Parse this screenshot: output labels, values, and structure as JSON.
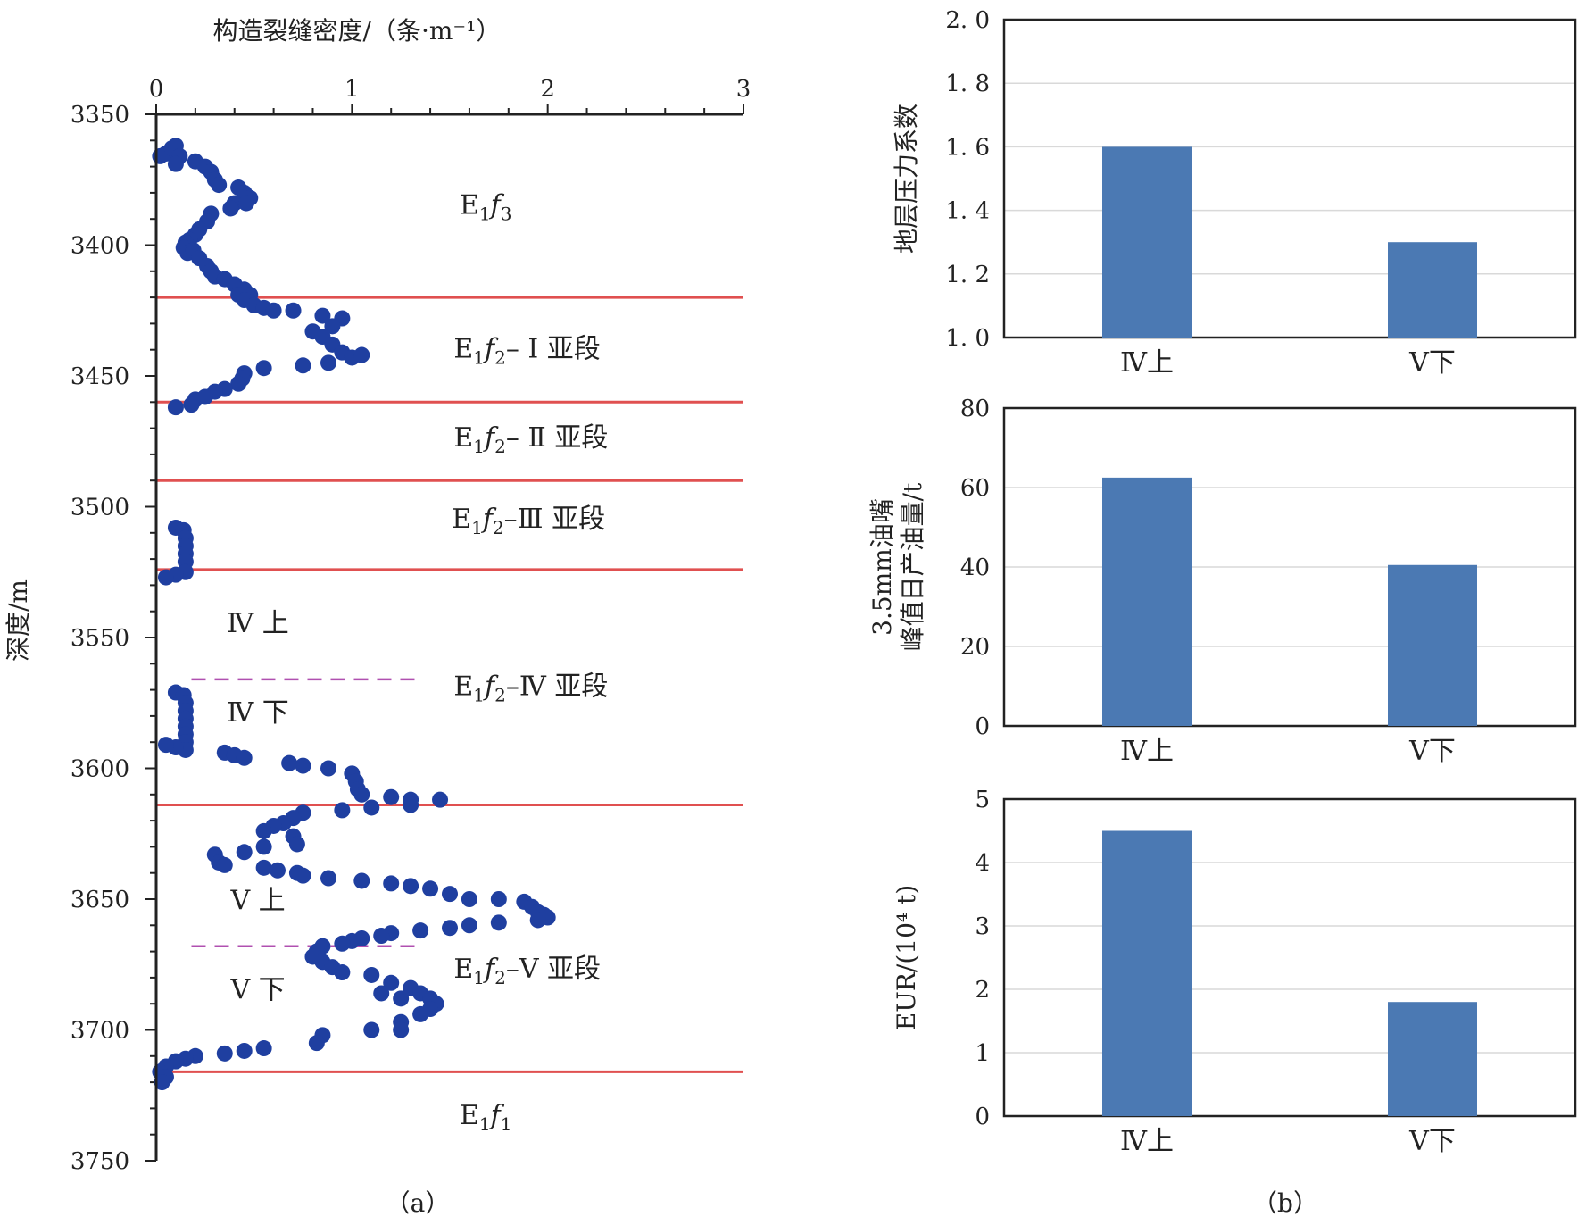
{
  "chart_data": [
    {
      "id": "a",
      "type": "scatter",
      "caption": "（a）",
      "xlabel": "构造裂缝密度/（条·m⁻¹）",
      "ylabel": "深度/m",
      "xlim": [
        0,
        3
      ],
      "ylim": [
        3350,
        3750
      ],
      "y_reversed": true,
      "x_axis_position": "top",
      "x_ticks": [
        "0",
        "1",
        "2",
        "3"
      ],
      "y_ticks": [
        "3350",
        "3400",
        "3450",
        "3500",
        "3550",
        "3600",
        "3650",
        "3700",
        "3750"
      ],
      "marker_color": "#1f3fa0",
      "boundary_color": "#e05050",
      "sub_boundary_color": "#b050b0",
      "boundaries": [
        3420,
        3460,
        3490,
        3524,
        3614,
        3716
      ],
      "sub_boundaries": [
        {
          "depth": 3566,
          "x_range": [
            0.18,
            1.35
          ]
        },
        {
          "depth": 3668,
          "x_range": [
            0.18,
            1.35
          ]
        }
      ],
      "zone_labels": [
        {
          "main": "E",
          "sub1": "1",
          "ital": "f",
          "sub2": "3",
          "rest": "",
          "x": 1.55,
          "y": 3388
        },
        {
          "main": "E",
          "sub1": "1",
          "ital": "f",
          "sub2": "2",
          "rest": "– Ⅰ 亚段",
          "x": 1.52,
          "y": 3443
        },
        {
          "main": "E",
          "sub1": "1",
          "ital": "f",
          "sub2": "2",
          "rest": "– Ⅱ 亚段",
          "x": 1.52,
          "y": 3477
        },
        {
          "main": "E",
          "sub1": "1",
          "ital": "f",
          "sub2": "2",
          "rest": "–Ⅲ 亚段",
          "x": 1.51,
          "y": 3508
        },
        {
          "main": "E",
          "sub1": "1",
          "ital": "f",
          "sub2": "2",
          "rest": "–Ⅳ 亚段",
          "x": 1.52,
          "y": 3572
        },
        {
          "main": "E",
          "sub1": "1",
          "ital": "f",
          "sub2": "2",
          "rest": "–Ⅴ 亚段",
          "x": 1.52,
          "y": 3680
        },
        {
          "main": "E",
          "sub1": "1",
          "ital": "f",
          "sub2": "1",
          "rest": "",
          "x": 1.55,
          "y": 3736
        }
      ],
      "sub_labels": [
        {
          "text": "Ⅳ 上",
          "x": 0.52,
          "y": 3548
        },
        {
          "text": "Ⅳ 下",
          "x": 0.52,
          "y": 3582
        },
        {
          "text": "Ⅴ 上",
          "x": 0.52,
          "y": 3654
        },
        {
          "text": "Ⅴ 下",
          "x": 0.52,
          "y": 3688
        }
      ],
      "points": [
        [
          0.02,
          3366
        ],
        [
          0.05,
          3365
        ],
        [
          0.08,
          3363
        ],
        [
          0.1,
          3362
        ],
        [
          0.12,
          3366
        ],
        [
          0.1,
          3369
        ],
        [
          0.2,
          3368
        ],
        [
          0.25,
          3370
        ],
        [
          0.28,
          3372
        ],
        [
          0.3,
          3375
        ],
        [
          0.32,
          3377
        ],
        [
          0.42,
          3378
        ],
        [
          0.45,
          3380
        ],
        [
          0.48,
          3382
        ],
        [
          0.4,
          3384
        ],
        [
          0.38,
          3386
        ],
        [
          0.46,
          3384
        ],
        [
          0.28,
          3388
        ],
        [
          0.26,
          3391
        ],
        [
          0.22,
          3394
        ],
        [
          0.2,
          3396
        ],
        [
          0.17,
          3398
        ],
        [
          0.15,
          3399
        ],
        [
          0.14,
          3401
        ],
        [
          0.16,
          3403
        ],
        [
          0.19,
          3402
        ],
        [
          0.22,
          3405
        ],
        [
          0.26,
          3408
        ],
        [
          0.28,
          3410
        ],
        [
          0.3,
          3412
        ],
        [
          0.35,
          3413
        ],
        [
          0.4,
          3415
        ],
        [
          0.45,
          3417
        ],
        [
          0.48,
          3419
        ],
        [
          0.42,
          3419
        ],
        [
          0.45,
          3421
        ],
        [
          0.5,
          3423
        ],
        [
          0.55,
          3424
        ],
        [
          0.6,
          3425
        ],
        [
          0.7,
          3425
        ],
        [
          0.85,
          3427
        ],
        [
          0.95,
          3428
        ],
        [
          0.9,
          3431
        ],
        [
          0.8,
          3433
        ],
        [
          0.85,
          3435
        ],
        [
          0.9,
          3438
        ],
        [
          0.95,
          3441
        ],
        [
          1.0,
          3443
        ],
        [
          1.05,
          3442
        ],
        [
          0.88,
          3445
        ],
        [
          0.75,
          3446
        ],
        [
          0.55,
          3447
        ],
        [
          0.45,
          3449
        ],
        [
          0.44,
          3451
        ],
        [
          0.42,
          3453
        ],
        [
          0.35,
          3455
        ],
        [
          0.3,
          3456
        ],
        [
          0.25,
          3458
        ],
        [
          0.2,
          3459
        ],
        [
          0.18,
          3461
        ],
        [
          0.1,
          3462
        ],
        [
          0.1,
          3508
        ],
        [
          0.14,
          3509
        ],
        [
          0.15,
          3512
        ],
        [
          0.15,
          3515
        ],
        [
          0.15,
          3518
        ],
        [
          0.15,
          3521
        ],
        [
          0.15,
          3525
        ],
        [
          0.1,
          3526
        ],
        [
          0.05,
          3527
        ],
        [
          0.1,
          3571
        ],
        [
          0.14,
          3572
        ],
        [
          0.15,
          3575
        ],
        [
          0.15,
          3578
        ],
        [
          0.15,
          3581
        ],
        [
          0.15,
          3584
        ],
        [
          0.15,
          3587
        ],
        [
          0.15,
          3590
        ],
        [
          0.15,
          3593
        ],
        [
          0.1,
          3592
        ],
        [
          0.05,
          3591
        ],
        [
          0.35,
          3594
        ],
        [
          0.4,
          3595
        ],
        [
          0.45,
          3596
        ],
        [
          0.68,
          3598
        ],
        [
          0.75,
          3599
        ],
        [
          0.88,
          3600
        ],
        [
          1.0,
          3602
        ],
        [
          1.02,
          3605
        ],
        [
          1.03,
          3608
        ],
        [
          1.05,
          3610
        ],
        [
          1.2,
          3611
        ],
        [
          1.3,
          3612
        ],
        [
          1.45,
          3612
        ],
        [
          1.3,
          3614
        ],
        [
          1.1,
          3615
        ],
        [
          0.95,
          3616
        ],
        [
          0.75,
          3617
        ],
        [
          0.7,
          3619
        ],
        [
          0.65,
          3621
        ],
        [
          0.6,
          3622
        ],
        [
          0.55,
          3624
        ],
        [
          0.7,
          3626
        ],
        [
          0.72,
          3629
        ],
        [
          0.55,
          3630
        ],
        [
          0.45,
          3632
        ],
        [
          0.3,
          3633
        ],
        [
          0.32,
          3636
        ],
        [
          0.35,
          3637
        ],
        [
          0.55,
          3638
        ],
        [
          0.62,
          3639
        ],
        [
          0.72,
          3640
        ],
        [
          0.75,
          3641
        ],
        [
          0.88,
          3642
        ],
        [
          1.05,
          3643
        ],
        [
          1.2,
          3644
        ],
        [
          1.3,
          3645
        ],
        [
          1.4,
          3646
        ],
        [
          1.5,
          3648
        ],
        [
          1.6,
          3650
        ],
        [
          1.75,
          3650
        ],
        [
          1.88,
          3651
        ],
        [
          1.92,
          3653
        ],
        [
          1.95,
          3655
        ],
        [
          1.98,
          3656
        ],
        [
          2.0,
          3657
        ],
        [
          1.95,
          3658
        ],
        [
          1.75,
          3659
        ],
        [
          1.6,
          3660
        ],
        [
          1.5,
          3661
        ],
        [
          1.35,
          3662
        ],
        [
          1.2,
          3663
        ],
        [
          1.15,
          3664
        ],
        [
          1.05,
          3665
        ],
        [
          1.0,
          3666
        ],
        [
          0.95,
          3667
        ],
        [
          0.85,
          3668
        ],
        [
          0.82,
          3670
        ],
        [
          0.8,
          3672
        ],
        [
          0.85,
          3674
        ],
        [
          0.9,
          3676
        ],
        [
          0.95,
          3678
        ],
        [
          1.1,
          3679
        ],
        [
          1.2,
          3682
        ],
        [
          1.3,
          3684
        ],
        [
          1.35,
          3686
        ],
        [
          1.4,
          3688
        ],
        [
          1.43,
          3690
        ],
        [
          1.4,
          3692
        ],
        [
          1.35,
          3694
        ],
        [
          1.25,
          3688
        ],
        [
          1.15,
          3686
        ],
        [
          1.25,
          3697
        ],
        [
          1.25,
          3700
        ],
        [
          1.1,
          3700
        ],
        [
          0.85,
          3702
        ],
        [
          0.82,
          3705
        ],
        [
          0.55,
          3707
        ],
        [
          0.45,
          3708
        ],
        [
          0.35,
          3709
        ],
        [
          0.2,
          3710
        ],
        [
          0.15,
          3711
        ],
        [
          0.1,
          3712
        ],
        [
          0.05,
          3714
        ],
        [
          0.02,
          3716
        ],
        [
          0.05,
          3718
        ],
        [
          0.03,
          3720
        ]
      ]
    },
    {
      "id": "b1",
      "type": "bar",
      "categories": [
        "Ⅳ上",
        "Ⅴ下"
      ],
      "values": [
        1.6,
        1.3
      ],
      "ylabel": "地层压力系数",
      "ylim": [
        1.0,
        2.0
      ],
      "y_ticks": [
        "1. 0",
        "1. 2",
        "1. 4",
        "1. 6",
        "1. 8",
        "2. 0"
      ],
      "bar_color": "#4b79b3",
      "grid": true
    },
    {
      "id": "b2",
      "type": "bar",
      "categories": [
        "Ⅳ上",
        "Ⅴ下"
      ],
      "values": [
        62.5,
        40.5
      ],
      "ylabel_lines": [
        "3.5mm油嘴",
        "峰值日产油量/t"
      ],
      "ylim": [
        0,
        80
      ],
      "y_ticks": [
        "0",
        "20",
        "40",
        "60",
        "80"
      ],
      "bar_color": "#4b79b3",
      "grid": true
    },
    {
      "id": "b3",
      "type": "bar",
      "categories": [
        "Ⅳ上",
        "Ⅴ下"
      ],
      "values": [
        4.5,
        1.8
      ],
      "ylabel": "EUR/(10⁴ t)",
      "ylim": [
        0,
        5
      ],
      "y_ticks": [
        "0",
        "1",
        "2",
        "3",
        "4",
        "5"
      ],
      "bar_color": "#4b79b3",
      "grid": true,
      "caption": "（b）"
    }
  ]
}
